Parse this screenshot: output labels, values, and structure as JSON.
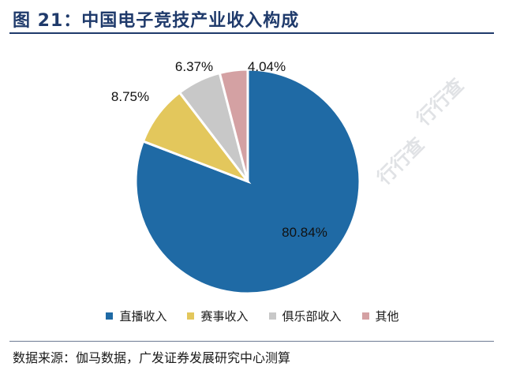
{
  "figure": {
    "title": "图 21：中国电子竞技产业收入构成",
    "source": "数据来源：伽马数据，广发证券发展研究中心测算",
    "watermark": "行行查"
  },
  "chart_data": {
    "type": "pie",
    "title": "图 21：中国电子竞技产业收入构成",
    "legend_position": "bottom",
    "slices": [
      {
        "label": "直播收入",
        "value": 80.84,
        "value_label": "80.84%",
        "color": "#1f6aa5"
      },
      {
        "label": "赛事收入",
        "value": 8.75,
        "value_label": "8.75%",
        "color": "#e3c75c"
      },
      {
        "label": "俱乐部收入",
        "value": 6.37,
        "value_label": "6.37%",
        "color": "#c8c8c8"
      },
      {
        "label": "其他",
        "value": 4.04,
        "value_label": "4.04%",
        "color": "#d4a1a3"
      }
    ]
  }
}
